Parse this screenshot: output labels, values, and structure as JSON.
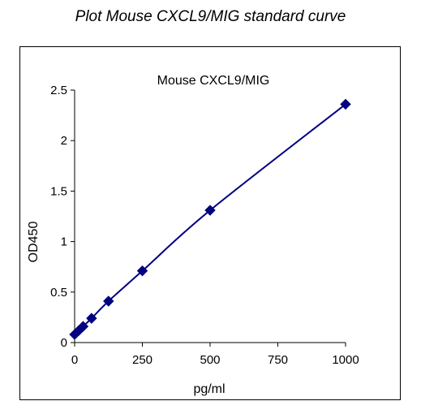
{
  "page": {
    "title": "Plot Mouse CXCL9/MIG standard curve"
  },
  "chart_data": {
    "type": "scatter",
    "title": "Mouse CXCL9/MIG",
    "xlabel": "pg/ml",
    "ylabel": "OD450",
    "xlim": [
      0,
      1000
    ],
    "ylim": [
      0,
      2.5
    ],
    "xticks": [
      0,
      250,
      500,
      750,
      1000
    ],
    "yticks": [
      0,
      0.5,
      1,
      1.5,
      2,
      2.5
    ],
    "xtick_labels": [
      "0",
      "250",
      "500",
      "750",
      "1000"
    ],
    "ytick_labels": [
      "0",
      "0.5",
      "1",
      "1.5",
      "2",
      "2.5"
    ],
    "grid": false,
    "legend": false,
    "marker": "diamond",
    "line": "smooth",
    "series_color": "#000080",
    "series": [
      {
        "x": [
          0,
          15.6,
          31.25,
          62.5,
          125,
          250,
          500,
          1000
        ],
        "y": [
          0.08,
          0.12,
          0.16,
          0.24,
          0.41,
          0.71,
          1.31,
          2.36
        ]
      }
    ]
  }
}
